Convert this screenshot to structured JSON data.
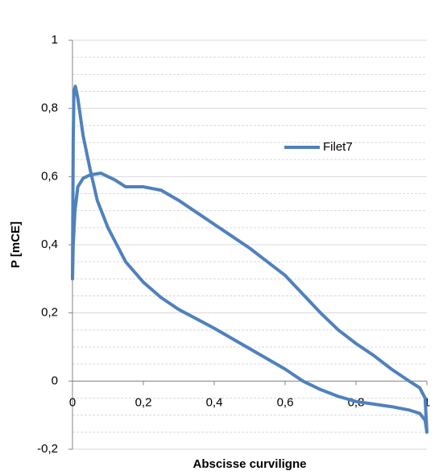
{
  "chart_data": {
    "type": "line",
    "xlabel": "Abscisse curviligne",
    "ylabel": "P [mCE]",
    "xlim": [
      0,
      1
    ],
    "xticks": [
      0,
      {
        "value": 0.2,
        "label": "0,2"
      },
      {
        "value": 0.4,
        "label": "0,4"
      },
      {
        "value": 0.6,
        "label": "0,6"
      },
      {
        "value": 0.8,
        "label": "0,8"
      },
      1
    ],
    "ylim": [
      -0.2,
      1
    ],
    "yticks": [
      {
        "value": -0.2,
        "label": "-0,2"
      },
      0,
      {
        "value": 0.2,
        "label": "0,2"
      },
      {
        "value": 0.4,
        "label": "0,4"
      },
      {
        "value": 0.6,
        "label": "0,6"
      },
      {
        "value": 0.8,
        "label": "0,8"
      },
      1
    ],
    "y_minor_ticks": [
      -0.15,
      -0.1,
      -0.05,
      0.05,
      0.1,
      0.15,
      0.25,
      0.3,
      0.35,
      0.45,
      0.5,
      0.55,
      0.65,
      0.7,
      0.75,
      0.85,
      0.9,
      0.95
    ],
    "grid": true,
    "legend": "right",
    "series": [
      {
        "name": "Filet7",
        "color": "#4f81bd",
        "x": [
          1.0,
          0.995,
          0.98,
          0.95,
          0.9,
          0.85,
          0.8,
          0.75,
          0.7,
          0.65,
          0.6,
          0.55,
          0.5,
          0.45,
          0.4,
          0.35,
          0.3,
          0.25,
          0.2,
          0.15,
          0.12,
          0.08,
          0.05,
          0.03,
          0.015,
          0.007,
          0.002,
          0,
          0.002,
          0.004,
          0.008,
          0.015,
          0.03,
          0.05,
          0.07,
          0.1,
          0.15,
          0.2,
          0.25,
          0.3,
          0.4,
          0.5,
          0.6,
          0.65,
          0.7,
          0.75,
          0.8,
          0.9,
          0.95,
          0.98,
          0.995,
          1.0
        ],
        "values": [
          -0.15,
          -0.05,
          -0.02,
          0.0,
          0.035,
          0.075,
          0.11,
          0.15,
          0.2,
          0.255,
          0.31,
          0.35,
          0.39,
          0.425,
          0.46,
          0.495,
          0.53,
          0.56,
          0.57,
          0.57,
          0.59,
          0.61,
          0.605,
          0.595,
          0.57,
          0.5,
          0.4,
          0.3,
          0.7,
          0.85,
          0.865,
          0.83,
          0.72,
          0.62,
          0.53,
          0.45,
          0.35,
          0.29,
          0.245,
          0.21,
          0.155,
          0.095,
          0.035,
          0.0,
          -0.025,
          -0.045,
          -0.06,
          -0.075,
          -0.085,
          -0.095,
          -0.115,
          -0.15
        ]
      }
    ]
  }
}
